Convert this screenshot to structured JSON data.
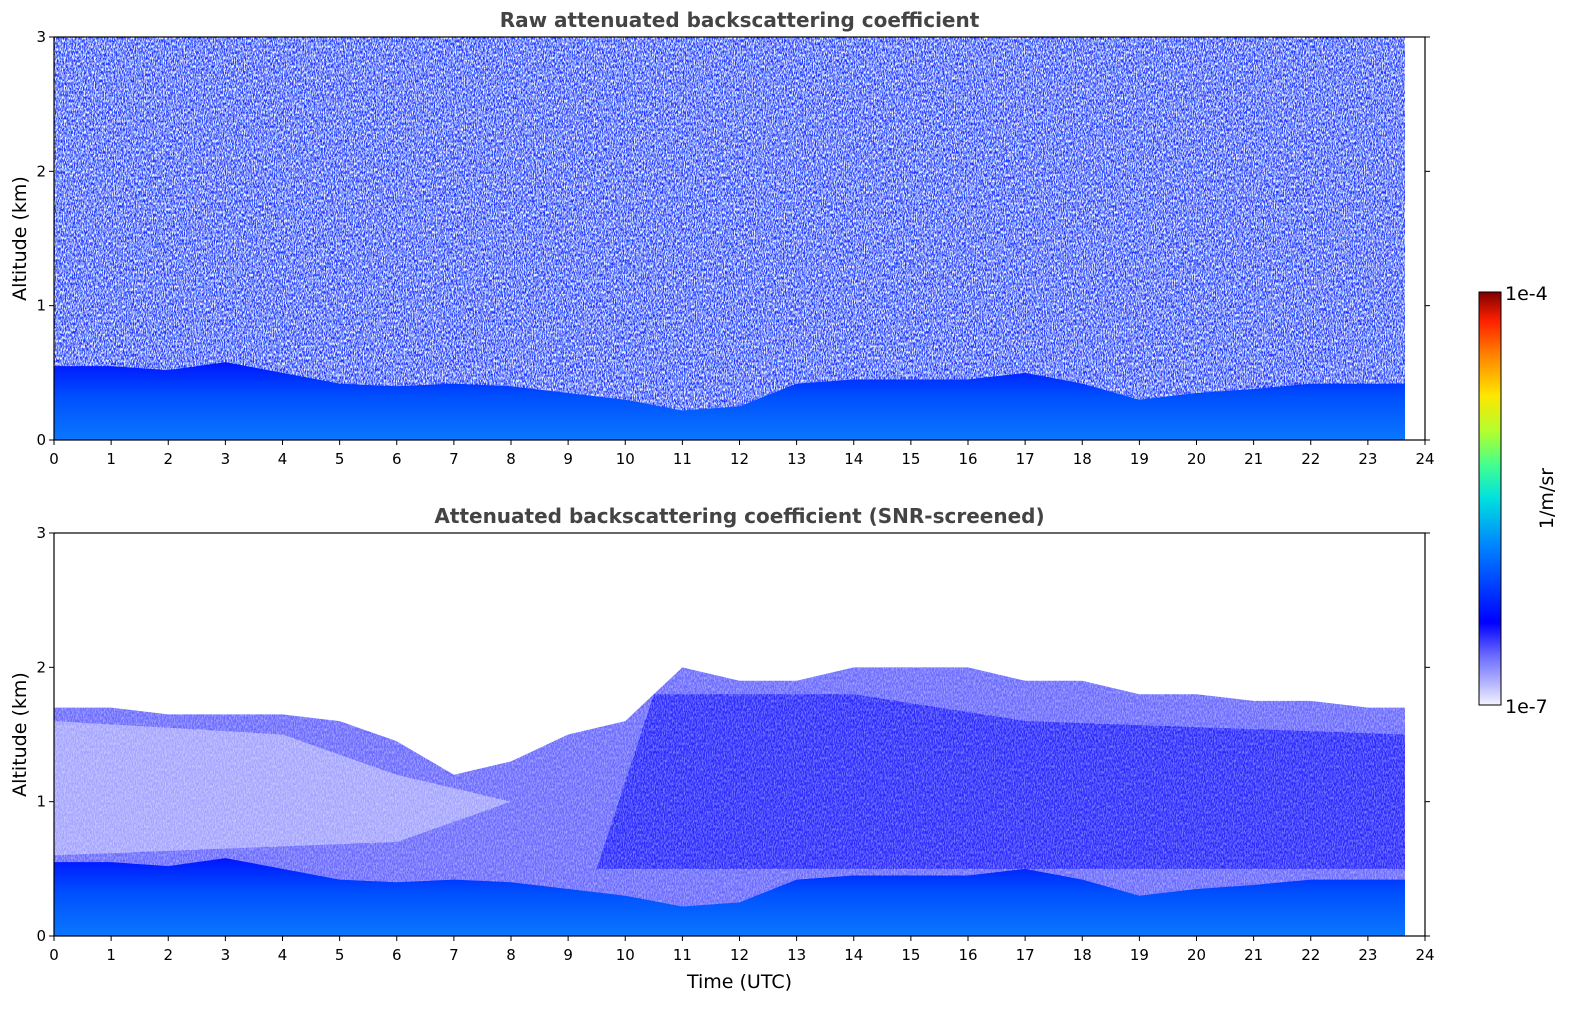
{
  "chart_data": [
    {
      "type": "heatmap",
      "title": "Raw attenuated backscattering coefficient",
      "xlabel": "",
      "ylabel": "Altitude (km)",
      "xlim": [
        0,
        24
      ],
      "ylim": [
        0,
        3
      ],
      "data_end_time": 23.65,
      "x_ticks": [
        "0",
        "1",
        "2",
        "3",
        "4",
        "5",
        "6",
        "7",
        "8",
        "9",
        "10",
        "11",
        "12",
        "13",
        "14",
        "15",
        "16",
        "17",
        "18",
        "19",
        "20",
        "21",
        "22",
        "23",
        "24"
      ],
      "y_ticks": [
        "0",
        "1",
        "2",
        "3"
      ],
      "boundary_layer_top_km": {
        "x": [
          0,
          1,
          2,
          3,
          4,
          5,
          6,
          7,
          8,
          9,
          10,
          11,
          12,
          13,
          14,
          15,
          16,
          17,
          18,
          19,
          20,
          21,
          22,
          23,
          23.65
        ],
        "y": [
          0.55,
          0.55,
          0.52,
          0.58,
          0.5,
          0.42,
          0.4,
          0.42,
          0.4,
          0.35,
          0.3,
          0.22,
          0.25,
          0.42,
          0.45,
          0.45,
          0.45,
          0.5,
          0.42,
          0.3,
          0.35,
          0.38,
          0.42,
          0.42,
          0.42
        ]
      },
      "noise_level": "high",
      "colormap_range": [
        "1e-7",
        "1e-4"
      ],
      "units": "1/m/sr"
    },
    {
      "type": "heatmap",
      "title": "Attenuated backscattering coefficient (SNR-screened)",
      "xlabel": "Time (UTC)",
      "ylabel": "Altitude (km)",
      "xlim": [
        0,
        24
      ],
      "ylim": [
        0,
        3
      ],
      "data_end_time": 23.65,
      "x_ticks": [
        "0",
        "1",
        "2",
        "3",
        "4",
        "5",
        "6",
        "7",
        "8",
        "9",
        "10",
        "11",
        "12",
        "13",
        "14",
        "15",
        "16",
        "17",
        "18",
        "19",
        "20",
        "21",
        "22",
        "23",
        "24"
      ],
      "y_ticks": [
        "0",
        "1",
        "2",
        "3"
      ],
      "boundary_layer_top_km": {
        "x": [
          0,
          1,
          2,
          3,
          4,
          5,
          6,
          7,
          8,
          9,
          10,
          11,
          12,
          13,
          14,
          15,
          16,
          17,
          18,
          19,
          20,
          21,
          22,
          23,
          23.65
        ],
        "y": [
          0.55,
          0.55,
          0.52,
          0.58,
          0.5,
          0.42,
          0.4,
          0.42,
          0.4,
          0.35,
          0.3,
          0.22,
          0.25,
          0.42,
          0.45,
          0.45,
          0.45,
          0.5,
          0.42,
          0.3,
          0.35,
          0.38,
          0.42,
          0.42,
          0.42
        ]
      },
      "signal_top_km": {
        "x": [
          0,
          1,
          2,
          3,
          4,
          5,
          6,
          7,
          8,
          9,
          10,
          11,
          12,
          13,
          14,
          15,
          16,
          17,
          18,
          19,
          20,
          21,
          22,
          23,
          23.65
        ],
        "y": [
          1.7,
          1.7,
          1.65,
          1.65,
          1.65,
          1.6,
          1.45,
          1.2,
          1.3,
          1.5,
          1.6,
          2.0,
          1.9,
          1.9,
          2.0,
          2.0,
          2.0,
          1.9,
          1.9,
          1.8,
          1.8,
          1.75,
          1.75,
          1.7,
          1.7
        ]
      },
      "colormap_range": [
        "1e-7",
        "1e-4"
      ],
      "units": "1/m/sr"
    }
  ],
  "colorbar": {
    "max_label": "1e-4",
    "min_label": "1e-7",
    "label": "1/m/sr",
    "stops": [
      "#f4f4ff",
      "#b8b8ff",
      "#6a6aff",
      "#0000ff",
      "#0080ff",
      "#00e0e0",
      "#40ff90",
      "#b0ff30",
      "#ffe600",
      "#ff8000",
      "#ff2000",
      "#7f0000"
    ]
  }
}
